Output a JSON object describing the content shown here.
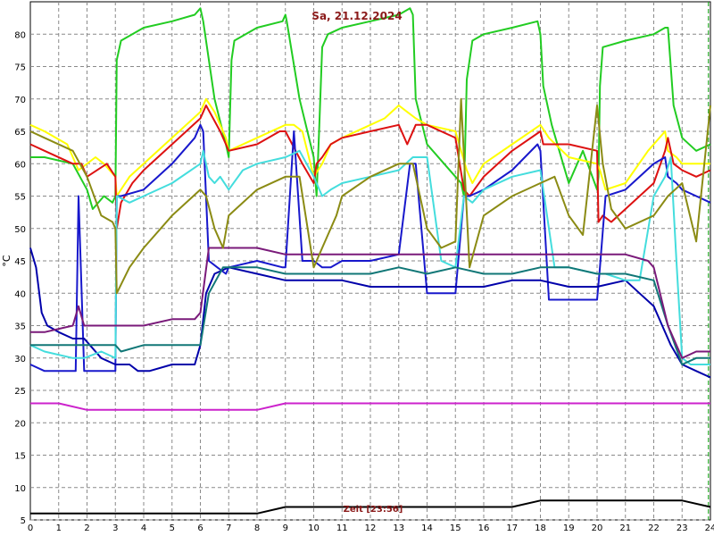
{
  "chart_data": {
    "type": "line",
    "title": "Sa, 21.12.2024",
    "ylabel": "°C",
    "cursor_label": "Zeit [23:56]",
    "xlim": [
      0,
      24
    ],
    "ylim": [
      5,
      85
    ],
    "x_ticks": [
      0,
      1,
      2,
      3,
      4,
      5,
      6,
      7,
      8,
      9,
      10,
      11,
      12,
      13,
      14,
      15,
      16,
      17,
      18,
      19,
      20,
      21,
      22,
      23,
      24
    ],
    "y_ticks": [
      5,
      10,
      15,
      20,
      25,
      30,
      35,
      40,
      45,
      50,
      55,
      60,
      65,
      70,
      75,
      80
    ],
    "grid": true,
    "grid_style": "dashed",
    "legend": "none",
    "cursor_x": 23.93,
    "series": [
      {
        "color": "#22cc22",
        "x": [
          0,
          0.5,
          1.5,
          2.0,
          2.2,
          2.6,
          2.9,
          3.0,
          3.05,
          3.2,
          4,
          5,
          5.8,
          6.0,
          6.1,
          6.5,
          6.9,
          7.0,
          7.1,
          7.2,
          8,
          8.9,
          9.0,
          9.05,
          9.5,
          10.0,
          10.1,
          10.2,
          10.3,
          10.5,
          11,
          12,
          13,
          13.4,
          13.5,
          13.6,
          14,
          15.2,
          15.3,
          15.4,
          15.6,
          16,
          17,
          17.9,
          18.0,
          18.1,
          18.4,
          18.8,
          19,
          19.5,
          20.0,
          20.05,
          20.1,
          20.2,
          21,
          22,
          22.4,
          22.5,
          22.7,
          23,
          23.5,
          24
        ],
        "y": [
          61,
          61,
          60,
          56,
          53,
          55,
          54,
          55,
          76,
          79,
          81,
          82,
          83,
          84,
          82,
          70,
          63,
          61,
          76,
          79,
          81,
          82,
          83,
          82,
          70,
          61,
          55,
          66,
          78,
          80,
          81,
          82,
          83,
          84,
          83,
          70,
          63,
          57,
          55,
          73,
          79,
          80,
          81,
          82,
          80,
          72,
          66,
          60,
          57,
          62,
          56,
          58,
          72,
          78,
          79,
          80,
          81,
          81,
          69,
          64,
          62,
          63
        ]
      },
      {
        "color": "#ffff00",
        "x": [
          0,
          0.5,
          1.3,
          1.7,
          2.3,
          2.6,
          3.0,
          3.05,
          3.5,
          4.0,
          5.0,
          6.0,
          6.1,
          6.2,
          6.5,
          6.7,
          6.9,
          7.0,
          8.0,
          9.0,
          9.3,
          9.6,
          10.0,
          10.3,
          10.6,
          11,
          12,
          12.5,
          13.0,
          13.3,
          13.6,
          14,
          15.0,
          15.4,
          15.6,
          16,
          17,
          18.0,
          18.3,
          19,
          20,
          20.1,
          20.3,
          21,
          21.8,
          22.4,
          22.5,
          22.8,
          23,
          23.5,
          24
        ],
        "y": [
          66,
          65,
          63,
          59,
          61,
          60,
          58,
          55,
          58,
          60,
          64,
          68,
          69,
          70,
          68,
          66,
          64,
          62,
          64,
          66,
          66,
          65,
          58,
          60,
          63,
          64,
          66,
          67,
          69,
          68,
          67,
          66,
          65,
          59,
          57,
          60,
          63,
          66,
          64,
          61,
          60,
          59,
          56,
          57,
          62,
          65,
          62,
          61,
          60,
          60,
          60
        ]
      },
      {
        "color": "#dd1111",
        "x": [
          0,
          0.5,
          1.5,
          1.8,
          2.0,
          2.7,
          3.0,
          3.05,
          3.2,
          3.6,
          4.0,
          5.0,
          6.0,
          6.1,
          6.2,
          6.7,
          6.9,
          7.0,
          8.0,
          8.8,
          9.0,
          9.6,
          10.0,
          10.1,
          10.3,
          10.6,
          11,
          12,
          13.0,
          13.3,
          13.6,
          14.0,
          15.0,
          15.3,
          15.5,
          16.0,
          17.0,
          18.0,
          18.1,
          18.3,
          19,
          20.0,
          20.05,
          20.2,
          20.5,
          21.0,
          22.0,
          22.4,
          22.5,
          22.7,
          23,
          23.5,
          24
        ],
        "y": [
          63,
          62,
          60,
          60,
          58,
          60,
          58,
          50,
          54,
          57,
          59,
          63,
          67,
          68,
          69,
          65,
          63,
          62,
          63,
          65,
          65,
          60,
          57,
          60,
          61,
          63,
          64,
          65,
          66,
          63,
          66,
          66,
          64,
          56,
          55,
          58,
          62,
          65,
          63,
          63,
          63,
          62,
          51,
          52,
          51,
          53,
          57,
          62,
          64,
          60,
          59,
          58,
          59
        ]
      },
      {
        "color": "#1818cc",
        "x": [
          0,
          0.5,
          1.6,
          1.7,
          1.9,
          2.9,
          3.0,
          3.05,
          3.2,
          4.0,
          5.0,
          5.8,
          6.0,
          6.1,
          6.3,
          6.6,
          6.9,
          7.0,
          8.0,
          8.9,
          9.0,
          9.3,
          9.6,
          10.0,
          10.3,
          10.6,
          11,
          12,
          13.0,
          13.4,
          13.6,
          14,
          15.0,
          15.3,
          15.5,
          16,
          17,
          17.9,
          18.0,
          18.3,
          19,
          20.0,
          20.1,
          20.3,
          21,
          22.0,
          22.4,
          22.5,
          22.8,
          23,
          23.5,
          24
        ],
        "y": [
          29,
          28,
          28,
          55,
          28,
          28,
          28,
          55,
          55,
          56,
          60,
          64,
          66,
          65,
          45,
          44,
          43,
          44,
          45,
          44,
          44,
          65,
          45,
          45,
          44,
          44,
          45,
          45,
          46,
          60,
          60,
          40,
          40,
          55,
          55,
          56,
          59,
          63,
          62,
          39,
          39,
          39,
          44,
          55,
          56,
          60,
          61,
          58,
          57,
          56,
          55,
          54
        ]
      },
      {
        "color": "#0000aa",
        "x": [
          0,
          0.2,
          0.4,
          0.6,
          1.0,
          1.5,
          1.9,
          2.5,
          3.0,
          3.5,
          3.8,
          4.2,
          5,
          5.8,
          6.0,
          6.2,
          6.5,
          7,
          8,
          9,
          10,
          11,
          12,
          13,
          14,
          15,
          16,
          17,
          18,
          19,
          20,
          21,
          21.5,
          22,
          22.3,
          22.6,
          23,
          23.5,
          24
        ],
        "y": [
          47,
          44,
          37,
          35,
          34,
          33,
          33,
          30,
          29,
          29,
          28,
          28,
          29,
          29,
          32,
          40,
          43,
          44,
          43,
          42,
          42,
          42,
          41,
          41,
          41,
          41,
          41,
          42,
          42,
          41,
          41,
          42,
          40,
          38,
          35,
          32,
          29,
          28,
          27
        ]
      },
      {
        "color": "#44dddd",
        "x": [
          0,
          0.5,
          1.5,
          1.9,
          2.5,
          3.0,
          3.05,
          3.5,
          4.0,
          5.0,
          6.0,
          6.1,
          6.3,
          6.5,
          6.7,
          7.0,
          7.5,
          8,
          9,
          9.5,
          10.0,
          10.3,
          10.6,
          11,
          12,
          13,
          13.5,
          14.0,
          14.5,
          15,
          15.3,
          15.6,
          16,
          17,
          18,
          18.5,
          19,
          20,
          20.3,
          21,
          21.5,
          22,
          22.4,
          22.6,
          22.8,
          23,
          23.3,
          24
        ],
        "y": [
          32,
          31,
          30,
          30,
          31,
          30,
          55,
          54,
          55,
          57,
          60,
          62,
          58,
          57,
          58,
          56,
          59,
          60,
          61,
          62,
          58,
          55,
          56,
          57,
          58,
          59,
          61,
          61,
          45,
          44,
          55,
          54,
          56,
          58,
          59,
          44,
          44,
          43,
          43,
          42,
          42,
          55,
          58,
          61,
          45,
          30,
          29,
          29
        ]
      },
      {
        "color": "#117777",
        "x": [
          0,
          0.5,
          1.5,
          2.0,
          2.5,
          3.0,
          3.2,
          4,
          5,
          5.8,
          6.0,
          6.3,
          6.8,
          7,
          8,
          9,
          10,
          11,
          12,
          13,
          14,
          15,
          16,
          17,
          18,
          19,
          20,
          21,
          22,
          22.5,
          23,
          23.5,
          24
        ],
        "y": [
          32,
          32,
          32,
          32,
          32,
          32,
          31,
          32,
          32,
          32,
          32,
          40,
          44,
          44,
          44,
          43,
          43,
          43,
          43,
          44,
          43,
          44,
          43,
          43,
          44,
          44,
          43,
          43,
          42,
          35,
          29,
          30,
          30
        ]
      },
      {
        "color": "#7a1a7a",
        "x": [
          0,
          0.5,
          1.5,
          1.7,
          1.9,
          2.5,
          3.0,
          3.2,
          4,
          5,
          5.8,
          6.0,
          6.3,
          7,
          8,
          9,
          10,
          11,
          12,
          13,
          14,
          15,
          16,
          17,
          18,
          19,
          20,
          21,
          21.8,
          22,
          22.5,
          23,
          23.5,
          24
        ],
        "y": [
          34,
          34,
          35,
          38,
          35,
          35,
          35,
          35,
          35,
          36,
          36,
          37,
          47,
          47,
          47,
          46,
          46,
          46,
          46,
          46,
          46,
          46,
          46,
          46,
          46,
          46,
          46,
          46,
          45,
          44,
          35,
          30,
          31,
          31
        ]
      },
      {
        "color": "#8b8b14",
        "x": [
          0,
          0.5,
          1.5,
          2.0,
          2.5,
          2.9,
          3.0,
          3.05,
          3.5,
          4,
          5,
          6,
          6.2,
          6.5,
          6.8,
          7,
          8,
          9,
          9.5,
          10,
          10.3,
          10.8,
          11,
          12,
          13,
          13.5,
          14,
          14.5,
          15,
          15.2,
          15.5,
          16,
          17,
          18,
          18.5,
          19,
          19.5,
          20,
          20.2,
          20.5,
          21,
          22,
          22.5,
          23,
          23.5,
          24
        ],
        "y": [
          65,
          64,
          62,
          58,
          52,
          51,
          50,
          40,
          44,
          47,
          52,
          56,
          55,
          50,
          47,
          52,
          56,
          58,
          58,
          44,
          47,
          52,
          55,
          58,
          60,
          60,
          50,
          47,
          48,
          70,
          44,
          52,
          55,
          57,
          58,
          52,
          49,
          69,
          60,
          53,
          50,
          52,
          55,
          57,
          48,
          69
        ]
      },
      {
        "color": "#cc22cc",
        "x": [
          0,
          1,
          2,
          3,
          4,
          5,
          6,
          7,
          8,
          9,
          10,
          11,
          12,
          13,
          14,
          15,
          16,
          17,
          18,
          19,
          20,
          21,
          22,
          23,
          24
        ],
        "y": [
          23,
          23,
          22,
          22,
          22,
          22,
          22,
          22,
          22,
          23,
          23,
          23,
          23,
          23,
          23,
          23,
          23,
          23,
          23,
          23,
          23,
          23,
          23,
          23,
          23
        ]
      },
      {
        "color": "#000000",
        "x": [
          0,
          1,
          2,
          3,
          4,
          5,
          6,
          7,
          8,
          9,
          10,
          11,
          12,
          13,
          14,
          15,
          16,
          17,
          18,
          19,
          20,
          21,
          22,
          23,
          24
        ],
        "y": [
          6,
          6,
          6,
          6,
          6,
          6,
          6,
          6,
          6,
          7,
          7,
          7,
          7,
          7,
          7,
          7,
          7,
          7,
          8,
          8,
          8,
          8,
          8,
          8,
          7
        ]
      }
    ]
  }
}
